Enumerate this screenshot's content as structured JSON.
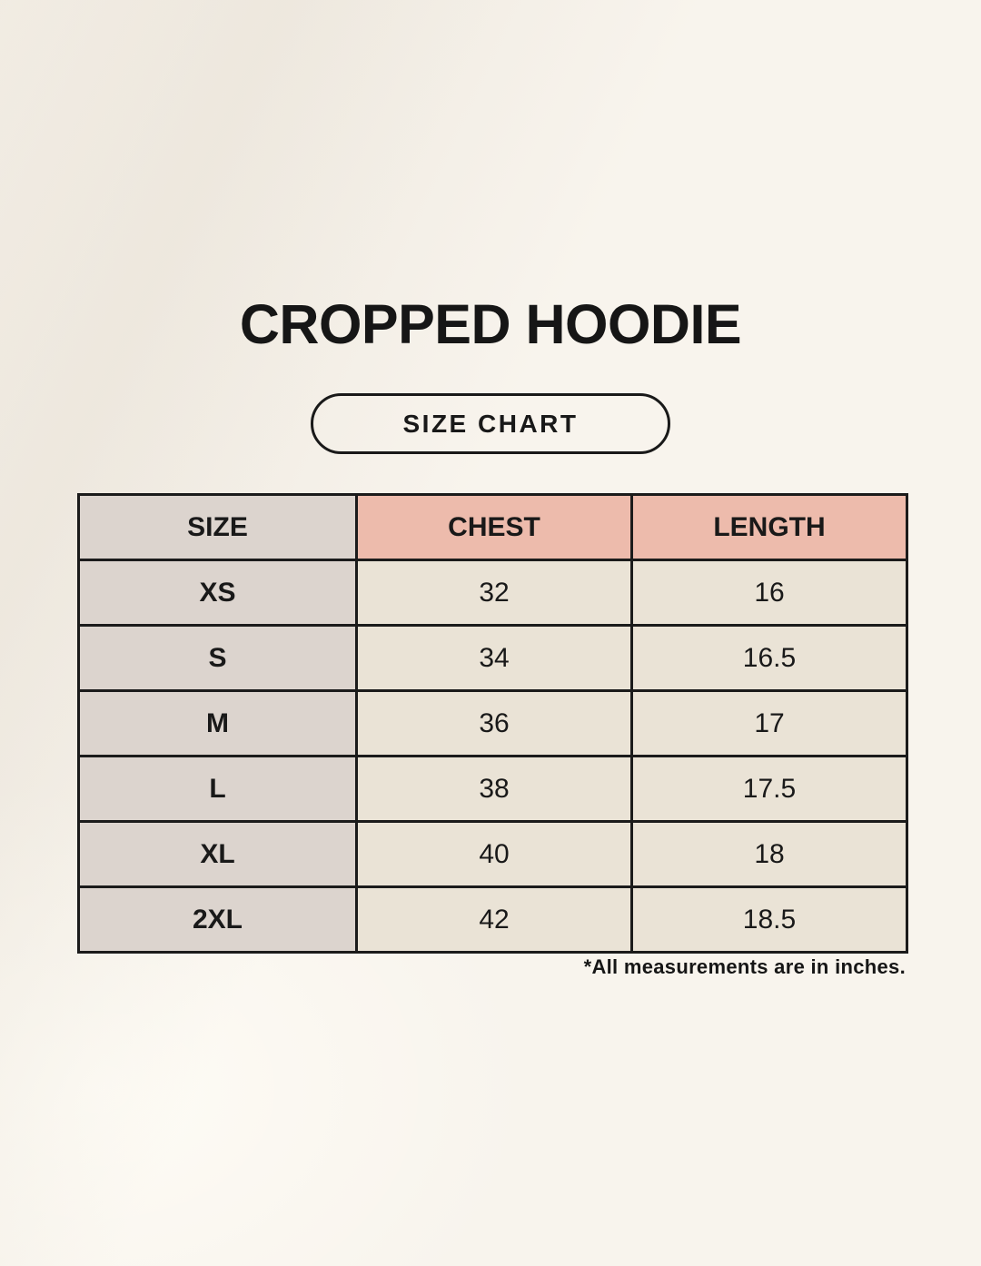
{
  "page": {
    "title": "CROPPED HOODIE",
    "size_chart_button": "SIZE CHART",
    "footnote": "*All measurements are in inches."
  },
  "colors": {
    "background": "#f8f4ed",
    "header_salmon": "#edbbac",
    "size_column_taupe": "#dcd4ce",
    "data_cell_cream": "#eae3d6",
    "border": "#1b1b1b",
    "text": "#161616"
  },
  "chart_data": {
    "type": "table",
    "title": "CROPPED HOODIE",
    "columns": [
      "SIZE",
      "CHEST",
      "LENGTH"
    ],
    "rows": [
      {
        "size": "XS",
        "chest": "32",
        "length": "16"
      },
      {
        "size": "S",
        "chest": "34",
        "length": "16.5"
      },
      {
        "size": "M",
        "chest": "36",
        "length": "17"
      },
      {
        "size": "L",
        "chest": "38",
        "length": "17.5"
      },
      {
        "size": "XL",
        "chest": "40",
        "length": "18"
      },
      {
        "size": "2XL",
        "chest": "42",
        "length": "18.5"
      }
    ],
    "units": "inches"
  }
}
